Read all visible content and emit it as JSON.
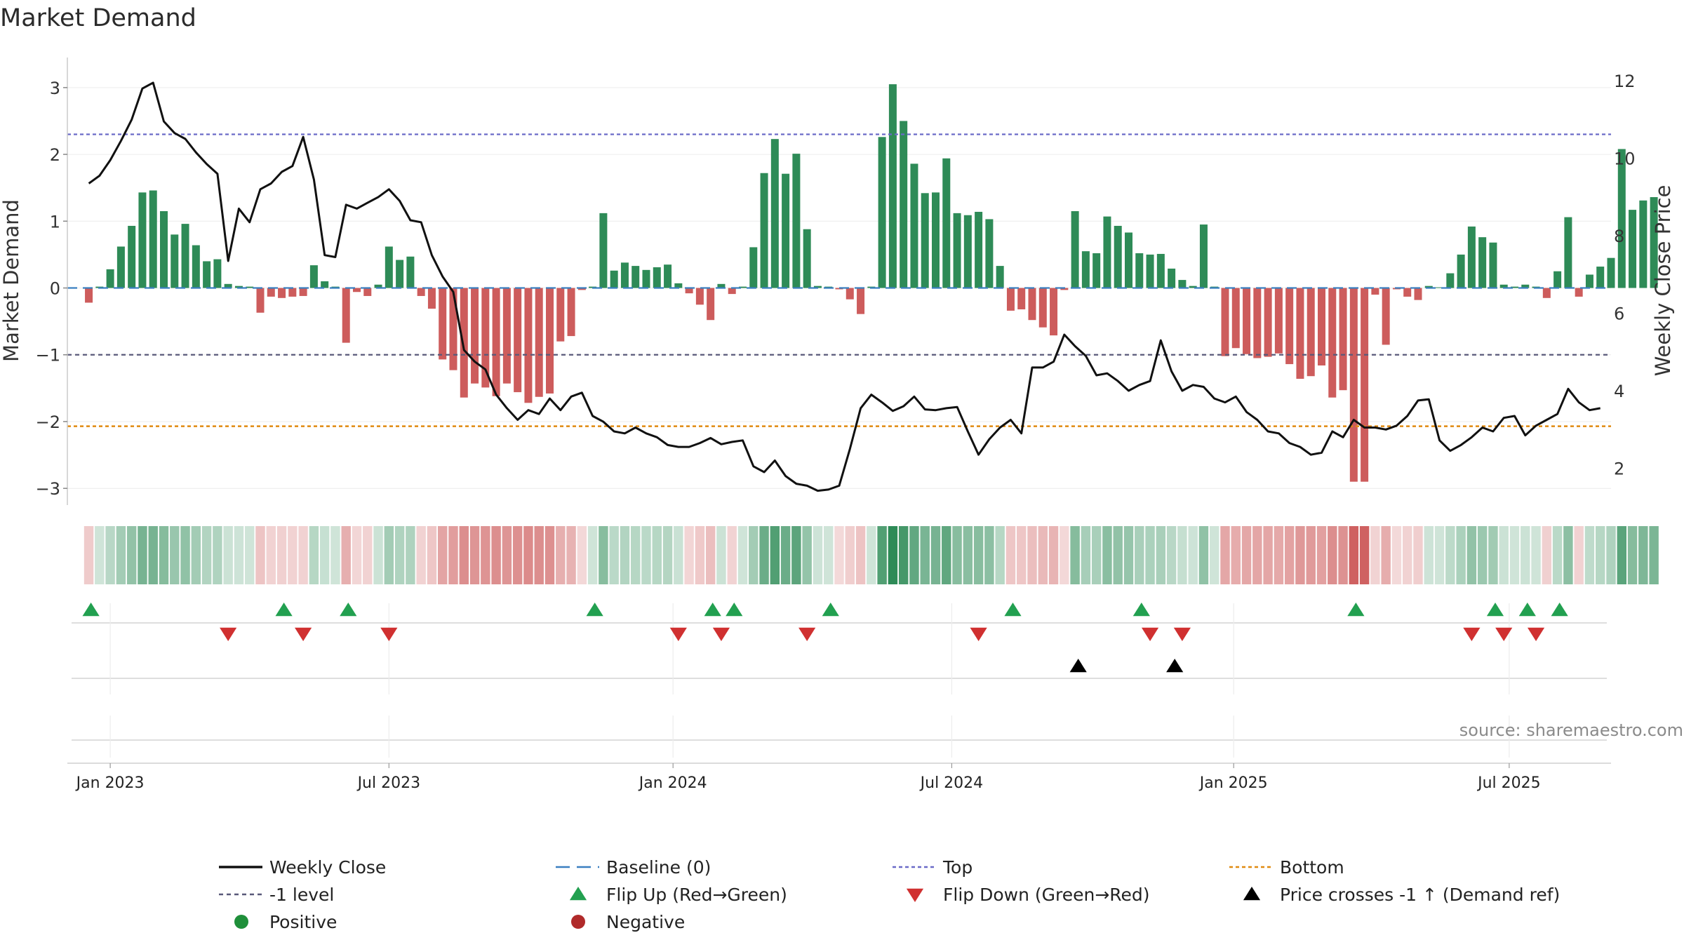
{
  "chart_data": {
    "type": "bar",
    "title": "Market Demand",
    "ylabel_left": "Market Demand",
    "ylabel_right": "Weekly Close Price",
    "source": "source: sharemaestro.com",
    "left_ylim": [
      -3.25,
      3.45
    ],
    "left_ticks": [
      {
        "v": 3,
        "t": "3"
      },
      {
        "v": 2,
        "t": "2"
      },
      {
        "v": 1,
        "t": "1"
      },
      {
        "v": 0,
        "t": "0"
      },
      {
        "v": -1,
        "t": "−1"
      },
      {
        "v": -2,
        "t": "−2"
      },
      {
        "v": -3,
        "t": "−3"
      }
    ],
    "right_ylim": [
      1.05,
      12.6
    ],
    "right_ticks": [
      {
        "v": 12,
        "t": "12"
      },
      {
        "v": 10,
        "t": "10"
      },
      {
        "v": 8,
        "t": "8"
      },
      {
        "v": 6,
        "t": "6"
      },
      {
        "v": 4,
        "t": "4"
      },
      {
        "v": 2,
        "t": "2"
      }
    ],
    "reference_lines": {
      "top": 2.3,
      "minus_one": -1,
      "bottom": -2.07,
      "baseline": 0
    },
    "x_week_range": [
      -2,
      142
    ],
    "date_ticks": [
      {
        "week": 2,
        "label": "Jan 2023"
      },
      {
        "week": 28,
        "label": "Jul 2023"
      },
      {
        "week": 54.5,
        "label": "Jan 2024"
      },
      {
        "week": 80.5,
        "label": "Jul 2024"
      },
      {
        "week": 106.8,
        "label": "Jan 2025"
      },
      {
        "week": 132.5,
        "label": "Jul 2025"
      }
    ],
    "demand": [
      -0.22,
      0.02,
      0.28,
      0.62,
      0.93,
      1.43,
      1.46,
      1.15,
      0.8,
      0.96,
      0.64,
      0.4,
      0.43,
      0.06,
      0.03,
      0.02,
      -0.37,
      -0.13,
      -0.15,
      -0.13,
      -0.12,
      0.34,
      0.1,
      0.02,
      -0.82,
      -0.06,
      -0.12,
      0.05,
      0.62,
      0.42,
      0.47,
      -0.12,
      -0.31,
      -1.07,
      -1.23,
      -1.64,
      -1.43,
      -1.49,
      -1.62,
      -1.43,
      -1.56,
      -1.72,
      -1.63,
      -1.58,
      -0.8,
      -0.72,
      -0.03,
      0.02,
      1.12,
      0.26,
      0.38,
      0.33,
      0.27,
      0.31,
      0.35,
      0.07,
      -0.08,
      -0.25,
      -0.48,
      0.06,
      -0.09,
      0.02,
      0.61,
      1.72,
      2.23,
      1.71,
      2.01,
      0.88,
      0.03,
      0.02,
      -0.02,
      -0.17,
      -0.39,
      0.02,
      2.26,
      3.05,
      2.5,
      1.86,
      1.42,
      1.43,
      1.94,
      1.12,
      1.09,
      1.14,
      1.03,
      0.33,
      -0.34,
      -0.32,
      -0.48,
      -0.59,
      -0.71,
      -0.03,
      1.15,
      0.55,
      0.52,
      1.07,
      0.93,
      0.83,
      0.52,
      0.5,
      0.51,
      0.29,
      0.12,
      0.03,
      0.95,
      0.02,
      -1.02,
      -0.9,
      -0.99,
      -1.05,
      -1.03,
      -0.98,
      -1.14,
      -1.36,
      -1.32,
      -1.16,
      -1.64,
      -1.53,
      -2.9,
      -2.9,
      -0.1,
      -0.85,
      -0.02,
      -0.13,
      -0.18,
      0.03,
      0.01,
      0.22,
      0.5,
      0.92,
      0.76,
      0.68,
      0.05,
      0.02,
      0.05,
      0.02,
      -0.15,
      0.25,
      1.06,
      -0.13,
      0.2,
      0.32,
      0.45,
      2.08,
      1.17,
      1.31,
      1.36
    ],
    "price": [
      9.35,
      9.55,
      9.95,
      10.45,
      11,
      11.8,
      11.95,
      10.95,
      10.65,
      10.5,
      10.15,
      9.85,
      9.6,
      7.35,
      8.7,
      8.35,
      9.2,
      9.35,
      9.65,
      9.8,
      10.55,
      9.45,
      7.5,
      7.45,
      8.8,
      8.7,
      8.85,
      9,
      9.2,
      8.9,
      8.4,
      8.35,
      7.5,
      6.95,
      6.55,
      5.05,
      4.75,
      4.55,
      3.9,
      3.55,
      3.25,
      3.5,
      3.4,
      3.8,
      3.5,
      3.85,
      3.95,
      3.35,
      3.2,
      2.95,
      2.9,
      3.05,
      2.9,
      2.8,
      2.6,
      2.55,
      2.55,
      2.65,
      2.78,
      2.62,
      2.68,
      2.72,
      2.05,
      1.9,
      2.2,
      1.8,
      1.6,
      1.55,
      1.42,
      1.45,
      1.55,
      2.5,
      3.55,
      3.9,
      3.7,
      3.48,
      3.6,
      3.85,
      3.52,
      3.5,
      3.55,
      3.58,
      2.95,
      2.35,
      2.75,
      3.05,
      3.25,
      2.9,
      4.6,
      4.6,
      4.75,
      5.45,
      5.15,
      4.9,
      4.4,
      4.45,
      4.25,
      4,
      4.15,
      4.25,
      5.3,
      4.5,
      4,
      4.15,
      4.1,
      3.8,
      3.7,
      3.85,
      3.45,
      3.25,
      2.95,
      2.9,
      2.65,
      2.55,
      2.35,
      2.4,
      2.95,
      2.8,
      3.25,
      3.05,
      3.05,
      3,
      3.1,
      3.35,
      3.75,
      3.78,
      2.72,
      2.45,
      2.6,
      2.8,
      3.05,
      2.95,
      3.3,
      3.35,
      2.85,
      3.1,
      3.25,
      3.4,
      4.05,
      3.7,
      3.5,
      3.55
    ],
    "flip_up_weeks": [
      0.2,
      18.2,
      24.2,
      47.2,
      58.2,
      60.2,
      69.2,
      86.2,
      98.2,
      118.2,
      131.2,
      134.2,
      137.2
    ],
    "flip_down_weeks": [
      13,
      20,
      28,
      55,
      59,
      67,
      83,
      99,
      102,
      129,
      132,
      135
    ],
    "price_cross_weeks": [
      92.3,
      101.3
    ],
    "legend": [
      {
        "key": "close",
        "label": "Weekly Close"
      },
      {
        "key": "baseline",
        "label": "Baseline (0)"
      },
      {
        "key": "top",
        "label": "Top"
      },
      {
        "key": "bottom",
        "label": "Bottom"
      },
      {
        "key": "minus1",
        "label": "-1 level"
      },
      {
        "key": "flipup",
        "label": "Flip Up (Red→Green)"
      },
      {
        "key": "flipdown",
        "label": "Flip Down (Green→Red)"
      },
      {
        "key": "cross",
        "label": "Price crosses -1 ↑ (Demand ref)"
      },
      {
        "key": "positive",
        "label": "Positive"
      },
      {
        "key": "negative",
        "label": "Negative"
      }
    ]
  },
  "colors": {
    "positive_bar": "#2e8b57",
    "negative_bar": "#cd5c5c",
    "price_line": "#111111",
    "top_line": "#6a6ac8",
    "minus1_line": "#595979",
    "bottom_line": "#e08a10",
    "baseline_line": "#3a7fc0",
    "flip_up": "#22a050",
    "flip_down": "#d03030",
    "cross": "#000000",
    "positive_dot": "#1f8f3a",
    "negative_dot": "#b02a2a"
  }
}
